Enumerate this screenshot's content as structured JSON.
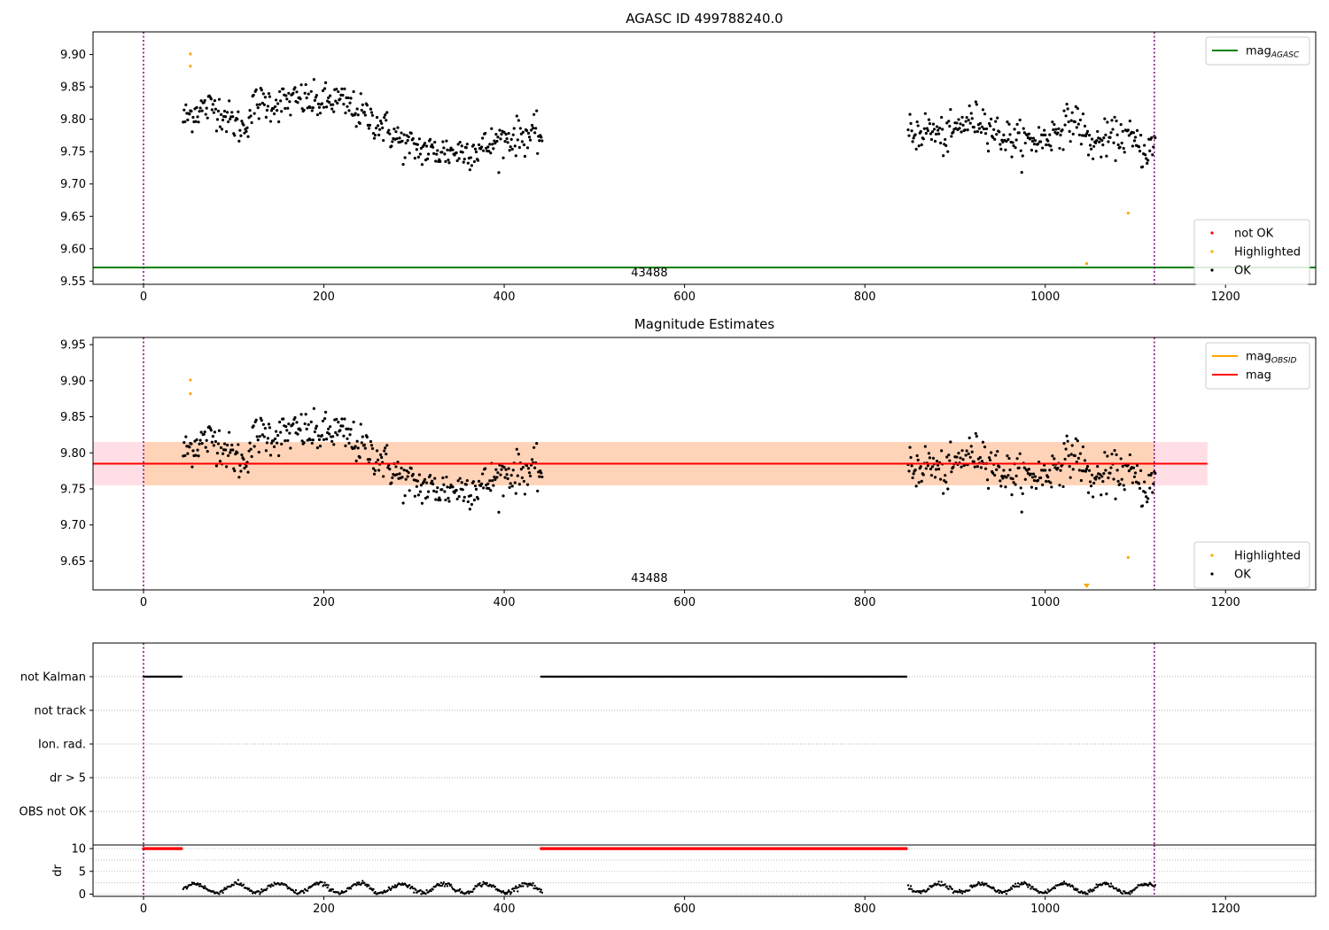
{
  "chart_data": [
    {
      "type": "scatter",
      "title": "AGASC ID 499788240.0",
      "xlim": [
        -56,
        1300
      ],
      "ylim": [
        9.545,
        9.935
      ],
      "xticks": [
        0,
        200,
        400,
        600,
        800,
        1000,
        1200
      ],
      "yticks": [
        9.55,
        9.6,
        9.65,
        9.7,
        9.75,
        9.8,
        9.85,
        9.9
      ],
      "obsid_boundaries": [
        0,
        1121
      ],
      "obsid_label": "43488",
      "obsid_label_x": 561,
      "hline": {
        "name": "mag_AGASC",
        "value": 9.571,
        "color": "#008000"
      },
      "legends": [
        {
          "placement": "upper right",
          "entries": [
            {
              "label": "mag",
              "sub": "AGASC",
              "kind": "line",
              "color": "#008000"
            }
          ]
        },
        {
          "placement": "lower right",
          "entries": [
            {
              "label": "not OK",
              "kind": "marker",
              "color": "#ff0000"
            },
            {
              "label": "Highlighted",
              "kind": "marker",
              "color": "#ffa500"
            },
            {
              "label": "OK",
              "kind": "marker",
              "color": "#000000"
            }
          ]
        }
      ],
      "highlighted_points": [
        {
          "x": 52,
          "y": 9.901
        },
        {
          "x": 52,
          "y": 9.882
        },
        {
          "x": 1092,
          "y": 9.655
        },
        {
          "x": 1046,
          "y": 9.577
        }
      ],
      "ok_segments": [
        {
          "x_start": 44,
          "x_end": 442,
          "anchors": [
            [
              44,
              9.8
            ],
            [
              60,
              9.815
            ],
            [
              80,
              9.82
            ],
            [
              95,
              9.8
            ],
            [
              110,
              9.785
            ],
            [
              125,
              9.825
            ],
            [
              150,
              9.825
            ],
            [
              175,
              9.83
            ],
            [
              195,
              9.825
            ],
            [
              215,
              9.83
            ],
            [
              240,
              9.81
            ],
            [
              265,
              9.79
            ],
            [
              290,
              9.76
            ],
            [
              320,
              9.75
            ],
            [
              350,
              9.75
            ],
            [
              375,
              9.755
            ],
            [
              400,
              9.77
            ],
            [
              420,
              9.775
            ],
            [
              442,
              9.775
            ]
          ]
        },
        {
          "x_start": 848,
          "x_end": 1122,
          "anchors": [
            [
              848,
              9.775
            ],
            [
              870,
              9.785
            ],
            [
              890,
              9.77
            ],
            [
              910,
              9.795
            ],
            [
              930,
              9.8
            ],
            [
              950,
              9.775
            ],
            [
              975,
              9.765
            ],
            [
              1000,
              9.77
            ],
            [
              1020,
              9.79
            ],
            [
              1035,
              9.8
            ],
            [
              1050,
              9.76
            ],
            [
              1070,
              9.77
            ],
            [
              1090,
              9.775
            ],
            [
              1110,
              9.75
            ],
            [
              1122,
              9.76
            ]
          ]
        }
      ],
      "scatter_sd": 0.014
    },
    {
      "type": "scatter",
      "title": "Magnitude Estimates",
      "xlim": [
        -56,
        1300
      ],
      "ylim": [
        9.61,
        9.96
      ],
      "xticks": [
        0,
        200,
        400,
        600,
        800,
        1000,
        1200
      ],
      "yticks": [
        9.65,
        9.7,
        9.75,
        9.8,
        9.85,
        9.9,
        9.95
      ],
      "obsid_boundaries": [
        0,
        1121
      ],
      "obsid_label": "43488",
      "obsid_label_x": 561,
      "mag_band": {
        "x_range": [
          -56,
          1180
        ],
        "low": 9.755,
        "high": 9.815,
        "mag": 9.785,
        "mag_color": "#ff0000",
        "band_color": "#ffc0cb"
      },
      "obsid_band": {
        "x_range": [
          0,
          1121
        ],
        "low": 9.755,
        "high": 9.815,
        "mag": 9.785,
        "mag_color": "#ffa500"
      },
      "legends": [
        {
          "placement": "upper right",
          "entries": [
            {
              "label": "mag",
              "sub": "OBSID",
              "kind": "line",
              "color": "#ffa500"
            },
            {
              "label": "mag",
              "kind": "line",
              "color": "#ff0000"
            }
          ]
        },
        {
          "placement": "lower right",
          "entries": [
            {
              "label": "Highlighted",
              "kind": "marker",
              "color": "#ffa500"
            },
            {
              "label": "OK",
              "kind": "marker",
              "color": "#000000"
            }
          ]
        }
      ],
      "highlighted_points": [
        {
          "x": 52,
          "y": 9.901
        },
        {
          "x": 52,
          "y": 9.882
        },
        {
          "x": 1092,
          "y": 9.655
        }
      ],
      "below_range_marker": {
        "x": 1046,
        "color": "#ffa500"
      }
    },
    {
      "type": "scatter",
      "categories": [
        "not Kalman",
        "not track",
        "Ion. rad.",
        "dr > 5",
        "OBS not OK"
      ],
      "xlim": [
        -56,
        1300
      ],
      "flag_ranges": [
        {
          "category": "not Kalman",
          "ranges": [
            [
              0,
              42
            ],
            [
              441,
              846
            ]
          ]
        }
      ],
      "obsid_boundaries": [
        0,
        1121
      ]
    },
    {
      "type": "line",
      "ylabel": "dr",
      "xlim": [
        -56,
        1300
      ],
      "ylim": [
        -0.5,
        10.8
      ],
      "xticks": [
        0,
        200,
        400,
        600,
        800,
        1000,
        1200
      ],
      "yticks": [
        0,
        5,
        10
      ],
      "clipped_ranges": [
        [
          0,
          42
        ],
        [
          441,
          846
        ]
      ],
      "clipped_value": 10,
      "clipped_color": "#ff0000",
      "dr_segments": [
        [
          44,
          442
        ],
        [
          848,
          1122
        ]
      ],
      "obsid_boundaries": [
        0,
        1121
      ]
    }
  ]
}
